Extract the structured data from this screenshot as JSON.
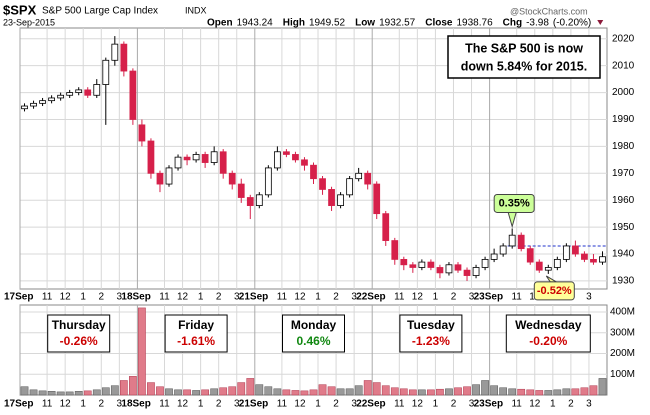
{
  "chart_data": {
    "type": "candlestick",
    "symbol": "$SPX",
    "title": "S&P 500 Large Cap Index",
    "exchange": "INDX",
    "date": "23-Sep-2015",
    "watermark": "@StockCharts.com",
    "quote": [
      {
        "label": "Open",
        "value": 1943.24
      },
      {
        "label": "High",
        "value": 1949.52
      },
      {
        "label": "Low",
        "value": 1932.57
      },
      {
        "label": "Close",
        "value": 1938.76
      },
      {
        "label": "Chg",
        "value": -3.98,
        "note": "(-0.20%)"
      }
    ],
    "callout": [
      "The S&P 500 is now",
      "down 5.84% for 2015."
    ],
    "candles": [
      [
        1994,
        1996,
        1993,
        1995
      ],
      [
        1995,
        1997,
        1994,
        1996
      ],
      [
        1996,
        1998,
        1995,
        1997
      ],
      [
        1997,
        1999,
        1996,
        1998
      ],
      [
        1998,
        2000,
        1997,
        1999
      ],
      [
        1999,
        2001,
        1998,
        2000
      ],
      [
        2000,
        2002,
        1999,
        2001
      ],
      [
        2001,
        2002,
        1998,
        1999
      ],
      [
        1999,
        2005,
        1998,
        2003
      ],
      [
        2003,
        2013,
        1988,
        2012
      ],
      [
        2012,
        2021,
        2010,
        2018
      ],
      [
        2018,
        2019,
        2006,
        2008
      ],
      [
        2008,
        2009,
        1988,
        1990
      ],
      [
        1988,
        1990,
        1980,
        1982
      ],
      [
        1982,
        1983,
        1968,
        1970
      ],
      [
        1970,
        1971,
        1963,
        1966
      ],
      [
        1966,
        1973,
        1965,
        1972
      ],
      [
        1972,
        1977,
        1971,
        1976
      ],
      [
        1976,
        1977,
        1973,
        1975
      ],
      [
        1975,
        1978,
        1974,
        1977
      ],
      [
        1977,
        1978,
        1972,
        1974
      ],
      [
        1974,
        1980,
        1973,
        1978
      ],
      [
        1978,
        1979,
        1968,
        1970
      ],
      [
        1970,
        1971,
        1964,
        1966
      ],
      [
        1966,
        1968,
        1959,
        1961
      ],
      [
        1961,
        1962,
        1953,
        1958
      ],
      [
        1958,
        1963,
        1957,
        1962
      ],
      [
        1962,
        1973,
        1961,
        1972
      ],
      [
        1972,
        1980,
        1971,
        1978
      ],
      [
        1978,
        1979,
        1976,
        1977
      ],
      [
        1977,
        1978,
        1974,
        1975
      ],
      [
        1975,
        1976,
        1971,
        1973
      ],
      [
        1973,
        1974,
        1966,
        1968
      ],
      [
        1968,
        1969,
        1962,
        1964
      ],
      [
        1964,
        1965,
        1956,
        1958
      ],
      [
        1958,
        1963,
        1957,
        1962
      ],
      [
        1962,
        1969,
        1961,
        1968
      ],
      [
        1968,
        1972,
        1967,
        1970
      ],
      [
        1970,
        1971,
        1964,
        1966
      ],
      [
        1966,
        1967,
        1953,
        1955
      ],
      [
        1955,
        1956,
        1943,
        1945
      ],
      [
        1945,
        1946,
        1936,
        1938
      ],
      [
        1938,
        1939,
        1934,
        1936
      ],
      [
        1936,
        1937,
        1933,
        1935
      ],
      [
        1935,
        1938,
        1934,
        1937
      ],
      [
        1937,
        1938,
        1934,
        1935
      ],
      [
        1935,
        1936,
        1931,
        1933
      ],
      [
        1933,
        1937,
        1932,
        1936
      ],
      [
        1936,
        1937,
        1933,
        1934
      ],
      [
        1934,
        1935,
        1930,
        1932
      ],
      [
        1932,
        1936,
        1931,
        1935
      ],
      [
        1935,
        1939,
        1934,
        1938
      ],
      [
        1938,
        1942,
        1937,
        1940
      ],
      [
        1940,
        1944,
        1939,
        1943
      ],
      [
        1943,
        1949.5,
        1942,
        1947
      ],
      [
        1947,
        1948,
        1941,
        1942
      ],
      [
        1942,
        1943,
        1936,
        1937
      ],
      [
        1937,
        1938,
        1933,
        1934
      ],
      [
        1934,
        1936,
        1932.6,
        1935
      ],
      [
        1935,
        1939,
        1934,
        1938
      ],
      [
        1938,
        1944,
        1937,
        1943
      ],
      [
        1943,
        1945,
        1939,
        1940
      ],
      [
        1940,
        1941,
        1937,
        1938
      ],
      [
        1938,
        1940,
        1936,
        1937
      ],
      [
        1937,
        1941,
        1936,
        1939
      ]
    ],
    "volume": [
      40,
      25,
      20,
      18,
      15,
      15,
      18,
      20,
      25,
      35,
      45,
      70,
      90,
      420,
      60,
      40,
      30,
      25,
      25,
      22,
      25,
      30,
      35,
      40,
      60,
      80,
      50,
      40,
      30,
      25,
      22,
      20,
      25,
      50,
      40,
      30,
      30,
      45,
      70,
      60,
      45,
      35,
      30,
      25,
      25,
      25,
      28,
      30,
      35,
      40,
      50,
      70,
      45,
      35,
      30,
      28,
      25,
      22,
      22,
      25,
      30,
      30,
      35,
      45,
      80
    ],
    "up_color": "#ffffff",
    "down_color": "#d6204a",
    "ylim": [
      1927,
      2024
    ],
    "yticks": [
      1930,
      1940,
      1950,
      1960,
      1970,
      1980,
      1990,
      2000,
      2010,
      2020
    ],
    "vol_ylim": [
      0,
      434
    ],
    "vol_yticks": [
      {
        "value": 100,
        "label": "100M"
      },
      {
        "value": 200,
        "label": "200M"
      },
      {
        "value": 300,
        "label": "300M"
      },
      {
        "value": 400,
        "label": "400M"
      }
    ],
    "xlim": [
      0,
      65
    ],
    "xticks": [
      {
        "value": 0,
        "label": "17Sep"
      },
      {
        "value": 3,
        "label": "11"
      },
      {
        "value": 5,
        "label": "12"
      },
      {
        "value": 7,
        "label": "1"
      },
      {
        "value": 9,
        "label": "2"
      },
      {
        "value": 11,
        "label": "3"
      },
      {
        "value": 13,
        "label": "18Sep"
      },
      {
        "value": 16,
        "label": "11"
      },
      {
        "value": 18,
        "label": "12"
      },
      {
        "value": 20,
        "label": "1"
      },
      {
        "value": 22,
        "label": "2"
      },
      {
        "value": 24,
        "label": "3"
      },
      {
        "value": 26,
        "label": "21Sep"
      },
      {
        "value": 29,
        "label": "11"
      },
      {
        "value": 31,
        "label": "12"
      },
      {
        "value": 33,
        "label": "1"
      },
      {
        "value": 35,
        "label": "2"
      },
      {
        "value": 37,
        "label": "3"
      },
      {
        "value": 39,
        "label": "22Sep"
      },
      {
        "value": 42,
        "label": "11"
      },
      {
        "value": 44,
        "label": "12"
      },
      {
        "value": 46,
        "label": "1"
      },
      {
        "value": 48,
        "label": "2"
      },
      {
        "value": 50,
        "label": "3"
      },
      {
        "value": 52,
        "label": "23Sep"
      },
      {
        "value": 55,
        "label": "11"
      },
      {
        "value": 57,
        "label": "12"
      },
      {
        "value": 59,
        "label": "1"
      },
      {
        "value": 61,
        "label": "2"
      },
      {
        "value": 63,
        "label": "3"
      }
    ],
    "reference_line": {
      "value": 1943,
      "color": "#2233cc"
    },
    "markers": [
      {
        "label": "0.35%",
        "bar": 54,
        "value": 1949.5,
        "color": "#ccff99",
        "side": "above"
      },
      {
        "label": "-0.52%",
        "bar": 58,
        "value": 1932.6,
        "color": "#ffff99",
        "side": "below"
      }
    ],
    "day_labels": [
      {
        "day": "Thursday",
        "change": "-0.26%",
        "color": "#cc0000"
      },
      {
        "day": "Friday",
        "change": "-1.61%",
        "color": "#cc0000"
      },
      {
        "day": "Monday",
        "change": "0.46%",
        "color": "#118811"
      },
      {
        "day": "Tuesday",
        "change": "-1.23%",
        "color": "#cc0000"
      },
      {
        "day": "Wednesday",
        "change": "-0.20%",
        "color": "#cc0000"
      }
    ]
  }
}
